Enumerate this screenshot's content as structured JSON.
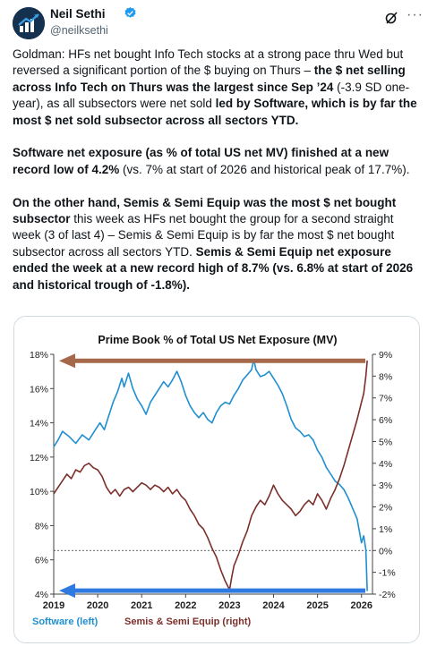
{
  "author": {
    "name": "Neil Sethi",
    "handle": "@neilksethi"
  },
  "icons": {
    "avatar": "avatar-image",
    "verified": "verified-badge-icon",
    "grok": "grok-icon",
    "more": "more-options-icon",
    "verified_color": "#1d9bf0"
  },
  "tweet": {
    "p1": [
      {
        "t": "Goldman: HFs net bought Info Tech stocks at a strong pace thru Wed but reversed a significant portion of the $ buying on Thurs – ",
        "b": false
      },
      {
        "t": "the $ net selling across Info Tech on Thurs was the largest since Sep ’24",
        "b": true
      },
      {
        "t": " (-3.9 SD one-year), as all subsectors were net sold ",
        "b": false
      },
      {
        "t": "led by Software, which is by far the most $ net sold subsector across all sectors YTD.",
        "b": true
      }
    ],
    "p2": [
      {
        "t": "Software net exposure (as % of total US net MV) finished at a new record low of 4.2%",
        "b": true
      },
      {
        "t": " (vs. 7% at start of 2026 and historical peak of 17.7%).",
        "b": false
      }
    ],
    "p3": [
      {
        "t": "On the other hand, Semis & Semi Equip was the most $ net bought subsector",
        "b": true
      },
      {
        "t": " this week as HFs net bought the group for a second straight week (3 of last 4) – Semis & Semi Equip is by far the most $ net bought subsector across all sectors YTD. ",
        "b": false
      },
      {
        "t": "Semis & Semi Equip net exposure ended the week at a new record high of 8.7% (vs. 6.8% at start of 2026 and historical trough of -1.8%).",
        "b": true
      }
    ]
  },
  "chart_data": {
    "type": "line",
    "title": "Prime Book % of Total US Net Exposure (MV)",
    "x_ticks": [
      "2019",
      "2020",
      "2021",
      "2022",
      "2023",
      "2024",
      "2025",
      "2026"
    ],
    "xlim": [
      2019.0,
      2026.25
    ],
    "left_axis": {
      "ticks": [
        "4%",
        "6%",
        "8%",
        "10%",
        "12%",
        "14%",
        "16%",
        "18%"
      ],
      "ylim": [
        4,
        18
      ]
    },
    "right_axis": {
      "ticks": [
        "-2%",
        "-1%",
        "0%",
        "1%",
        "2%",
        "3%",
        "4%",
        "5%",
        "6%",
        "7%",
        "8%",
        "9%"
      ],
      "ylim": [
        -2,
        9
      ]
    },
    "zero_line_right": 0,
    "grid": false,
    "legend_position": "bottom-left",
    "series": [
      {
        "name": "Software (left)",
        "axis": "left",
        "color": "#1f8fd0",
        "points": [
          [
            2019.0,
            12.6
          ],
          [
            2019.1,
            13.0
          ],
          [
            2019.2,
            13.5
          ],
          [
            2019.35,
            13.2
          ],
          [
            2019.5,
            12.8
          ],
          [
            2019.65,
            13.3
          ],
          [
            2019.8,
            13.0
          ],
          [
            2019.95,
            13.6
          ],
          [
            2020.05,
            14.0
          ],
          [
            2020.15,
            13.6
          ],
          [
            2020.25,
            14.4
          ],
          [
            2020.35,
            15.2
          ],
          [
            2020.45,
            15.8
          ],
          [
            2020.55,
            16.6
          ],
          [
            2020.6,
            16.1
          ],
          [
            2020.7,
            16.9
          ],
          [
            2020.8,
            16.0
          ],
          [
            2020.9,
            15.4
          ],
          [
            2021.0,
            15.0
          ],
          [
            2021.1,
            14.5
          ],
          [
            2021.2,
            15.2
          ],
          [
            2021.3,
            15.6
          ],
          [
            2021.4,
            16.0
          ],
          [
            2021.5,
            16.4
          ],
          [
            2021.6,
            16.1
          ],
          [
            2021.7,
            16.5
          ],
          [
            2021.8,
            17.0
          ],
          [
            2021.9,
            16.4
          ],
          [
            2022.0,
            15.6
          ],
          [
            2022.1,
            15.0
          ],
          [
            2022.2,
            14.6
          ],
          [
            2022.3,
            14.3
          ],
          [
            2022.4,
            14.6
          ],
          [
            2022.5,
            14.2
          ],
          [
            2022.6,
            14.0
          ],
          [
            2022.7,
            14.6
          ],
          [
            2022.8,
            15.0
          ],
          [
            2022.9,
            15.2
          ],
          [
            2023.0,
            15.1
          ],
          [
            2023.1,
            15.6
          ],
          [
            2023.2,
            16.0
          ],
          [
            2023.3,
            16.5
          ],
          [
            2023.4,
            16.8
          ],
          [
            2023.5,
            17.1
          ],
          [
            2023.55,
            17.7
          ],
          [
            2023.6,
            17.1
          ],
          [
            2023.7,
            16.7
          ],
          [
            2023.8,
            16.8
          ],
          [
            2023.9,
            17.0
          ],
          [
            2024.0,
            16.6
          ],
          [
            2024.1,
            16.2
          ],
          [
            2024.2,
            15.7
          ],
          [
            2024.3,
            15.0
          ],
          [
            2024.4,
            14.2
          ],
          [
            2024.5,
            13.7
          ],
          [
            2024.6,
            13.5
          ],
          [
            2024.7,
            13.2
          ],
          [
            2024.8,
            13.3
          ],
          [
            2024.9,
            13.0
          ],
          [
            2025.0,
            12.4
          ],
          [
            2025.1,
            12.0
          ],
          [
            2025.2,
            11.4
          ],
          [
            2025.3,
            11.0
          ],
          [
            2025.4,
            10.6
          ],
          [
            2025.5,
            10.4
          ],
          [
            2025.6,
            10.1
          ],
          [
            2025.7,
            9.6
          ],
          [
            2025.8,
            9.0
          ],
          [
            2025.9,
            8.4
          ],
          [
            2026.0,
            7.0
          ],
          [
            2026.05,
            7.4
          ],
          [
            2026.1,
            6.6
          ],
          [
            2026.13,
            4.2
          ]
        ]
      },
      {
        "name": "Semis & Semi Equip (right)",
        "axis": "right",
        "color": "#7b2f2b",
        "points": [
          [
            2019.0,
            2.6
          ],
          [
            2019.1,
            2.9
          ],
          [
            2019.2,
            3.2
          ],
          [
            2019.3,
            3.5
          ],
          [
            2019.4,
            3.3
          ],
          [
            2019.5,
            3.7
          ],
          [
            2019.6,
            3.6
          ],
          [
            2019.7,
            3.9
          ],
          [
            2019.8,
            4.0
          ],
          [
            2019.9,
            3.8
          ],
          [
            2020.0,
            3.7
          ],
          [
            2020.1,
            3.4
          ],
          [
            2020.2,
            2.9
          ],
          [
            2020.3,
            2.6
          ],
          [
            2020.4,
            2.8
          ],
          [
            2020.5,
            2.5
          ],
          [
            2020.6,
            2.8
          ],
          [
            2020.7,
            2.9
          ],
          [
            2020.8,
            2.7
          ],
          [
            2020.9,
            2.9
          ],
          [
            2021.0,
            3.1
          ],
          [
            2021.1,
            3.0
          ],
          [
            2021.2,
            2.8
          ],
          [
            2021.3,
            3.0
          ],
          [
            2021.4,
            2.9
          ],
          [
            2021.5,
            2.7
          ],
          [
            2021.6,
            2.9
          ],
          [
            2021.7,
            2.6
          ],
          [
            2021.8,
            2.8
          ],
          [
            2021.9,
            2.5
          ],
          [
            2022.0,
            2.3
          ],
          [
            2022.1,
            1.9
          ],
          [
            2022.2,
            1.6
          ],
          [
            2022.3,
            1.2
          ],
          [
            2022.4,
            1.0
          ],
          [
            2022.5,
            0.6
          ],
          [
            2022.6,
            0.1
          ],
          [
            2022.7,
            -0.3
          ],
          [
            2022.8,
            -0.9
          ],
          [
            2022.9,
            -1.4
          ],
          [
            2023.0,
            -1.8
          ],
          [
            2023.05,
            -1.2
          ],
          [
            2023.1,
            -0.7
          ],
          [
            2023.2,
            -0.2
          ],
          [
            2023.3,
            0.4
          ],
          [
            2023.4,
            0.9
          ],
          [
            2023.5,
            1.6
          ],
          [
            2023.6,
            2.0
          ],
          [
            2023.7,
            2.3
          ],
          [
            2023.8,
            2.1
          ],
          [
            2023.9,
            2.5
          ],
          [
            2024.0,
            3.0
          ],
          [
            2024.1,
            2.6
          ],
          [
            2024.2,
            2.3
          ],
          [
            2024.3,
            2.1
          ],
          [
            2024.4,
            1.9
          ],
          [
            2024.5,
            1.6
          ],
          [
            2024.6,
            1.8
          ],
          [
            2024.7,
            2.1
          ],
          [
            2024.8,
            2.3
          ],
          [
            2024.9,
            2.1
          ],
          [
            2025.0,
            2.6
          ],
          [
            2025.1,
            2.3
          ],
          [
            2025.2,
            1.9
          ],
          [
            2025.3,
            2.4
          ],
          [
            2025.4,
            2.8
          ],
          [
            2025.5,
            3.3
          ],
          [
            2025.6,
            3.9
          ],
          [
            2025.7,
            4.6
          ],
          [
            2025.8,
            5.3
          ],
          [
            2025.9,
            6.0
          ],
          [
            2026.0,
            6.8
          ],
          [
            2026.05,
            7.2
          ],
          [
            2026.1,
            8.0
          ],
          [
            2026.13,
            8.7
          ]
        ]
      }
    ],
    "annotations": [
      {
        "kind": "arrow",
        "axis": "right",
        "y": 8.7,
        "direction": "left",
        "color": "#a5684a"
      },
      {
        "kind": "arrow",
        "axis": "left",
        "y": 4.2,
        "direction": "left",
        "color": "#2f7ae0"
      }
    ]
  }
}
